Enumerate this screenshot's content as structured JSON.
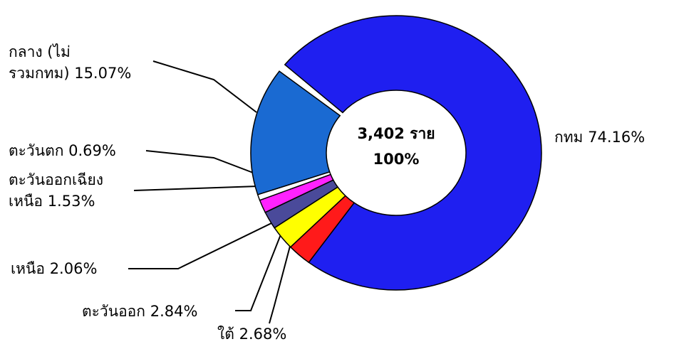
{
  "chart_data": {
    "type": "donut",
    "categories": [
      "กทม",
      "ใต้",
      "ตะวันออก",
      "เหนือ",
      "ตะวันออกเฉียง\nเหนือ",
      "ตะวันตก",
      "กลาง (ไม่\nรวมกทม)"
    ],
    "values": [
      74.16,
      2.68,
      2.84,
      2.06,
      1.53,
      0.69,
      15.07
    ],
    "value_labels": [
      "74.16%",
      "2.68%",
      "2.84%",
      "2.06%",
      "1.53%",
      "0.69%",
      "15.07%"
    ],
    "colors": [
      "#1f1ff0",
      "#ff1a1a",
      "#ffff00",
      "#4a4a9a",
      "#ff22ff",
      "#ffffff",
      "#1a6ad2"
    ],
    "center_label": "3,402 ราย",
    "center_percent_label": "100%"
  }
}
